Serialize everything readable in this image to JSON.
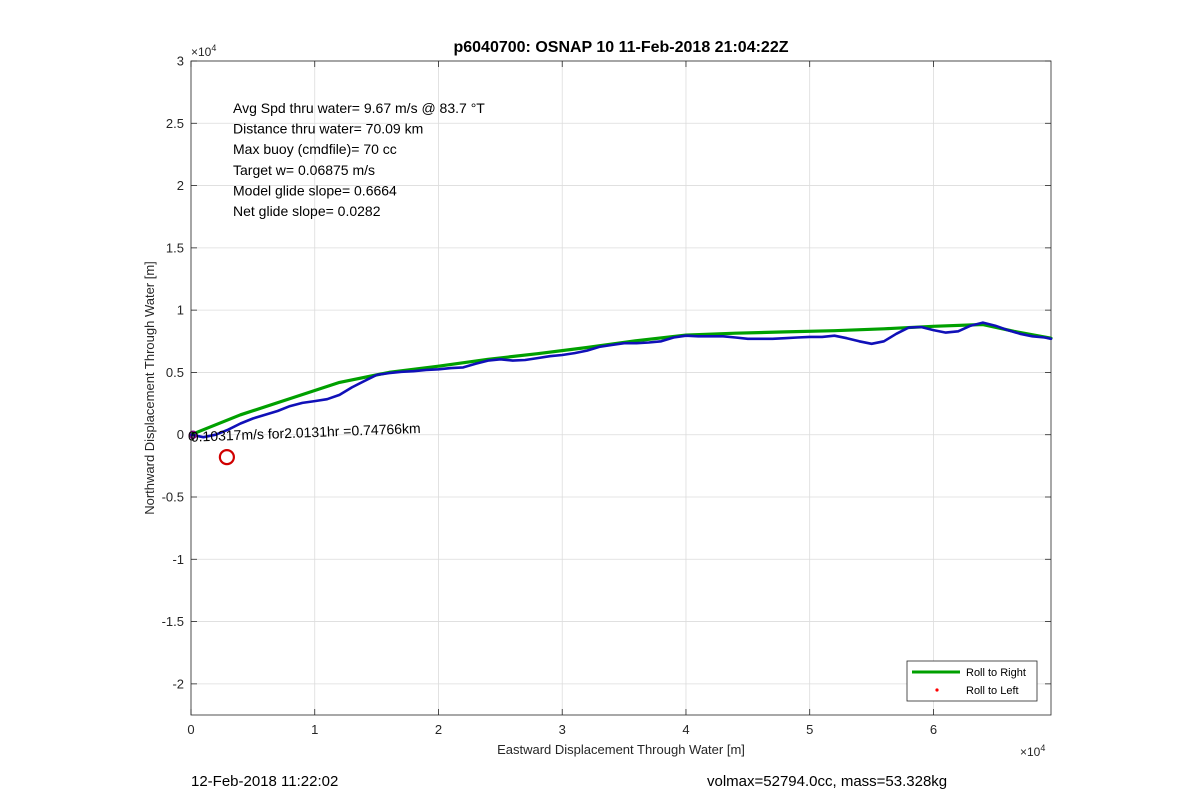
{
  "chart_data": {
    "type": "line",
    "title": "p6040700: OSNAP 10 11-Feb-2018 21:04:22Z",
    "xlabel": "Eastward Displacement Through Water [m]",
    "ylabel": "Northward Displacement Through Water [m]",
    "x_exponent_label": "×10",
    "x_exponent": "4",
    "y_exponent_label": "×10",
    "y_exponent": "4",
    "xlim": [
      0,
      69500
    ],
    "ylim": [
      -22500,
      30000
    ],
    "x_ticks": [
      0,
      10000,
      20000,
      30000,
      40000,
      50000,
      60000
    ],
    "x_tick_labels": [
      "0",
      "1",
      "2",
      "3",
      "4",
      "5",
      "6"
    ],
    "y_ticks": [
      -20000,
      -15000,
      -10000,
      -5000,
      0,
      5000,
      10000,
      15000,
      20000,
      25000,
      30000
    ],
    "y_tick_labels": [
      "-2",
      "-1.5",
      "-1",
      "-0.5",
      "0",
      "0.5",
      "1",
      "1.5",
      "2",
      "2.5",
      "3"
    ],
    "grid": true,
    "legend_position": "bottom-right",
    "series": [
      {
        "name": "Roll to Right",
        "color": "#00a000",
        "x": [
          0,
          4000,
          8000,
          12000,
          16000,
          20000,
          24000,
          28000,
          32000,
          36000,
          40000,
          44000,
          48000,
          52000,
          56000,
          60000,
          64000,
          66500,
          69500
        ],
        "y": [
          0,
          1600,
          2900,
          4200,
          5000,
          5500,
          6050,
          6500,
          7000,
          7550,
          8000,
          8150,
          8250,
          8350,
          8500,
          8700,
          8850,
          8300,
          7750
        ]
      },
      {
        "name": "Roll to Left",
        "color": "#ff0000",
        "marker": "point",
        "x": [],
        "y": []
      },
      {
        "name": "",
        "color": "#1010b8",
        "x": [
          0,
          1000,
          2000,
          3000,
          4000,
          5000,
          6000,
          7000,
          8000,
          9000,
          10000,
          11000,
          12000,
          13000,
          14000,
          15000,
          16000,
          17000,
          18000,
          19000,
          20000,
          21000,
          22000,
          23000,
          24000,
          25000,
          26000,
          27000,
          28000,
          29000,
          30000,
          31000,
          32000,
          33000,
          34000,
          35000,
          36000,
          37000,
          38000,
          39000,
          40000,
          41000,
          42000,
          43000,
          44000,
          45000,
          46000,
          47000,
          48000,
          49000,
          50000,
          51000,
          52000,
          53000,
          54000,
          55000,
          56000,
          57000,
          58000,
          59000,
          60000,
          61000,
          62000,
          63000,
          64000,
          65000,
          66000,
          67000,
          68000,
          69000,
          69500
        ],
        "y": [
          0,
          -200,
          0,
          400,
          900,
          1300,
          1600,
          1900,
          2300,
          2550,
          2700,
          2850,
          3200,
          3800,
          4300,
          4800,
          4950,
          5050,
          5100,
          5200,
          5250,
          5350,
          5400,
          5700,
          5950,
          6050,
          5950,
          6000,
          6150,
          6300,
          6400,
          6550,
          6750,
          7050,
          7200,
          7350,
          7350,
          7400,
          7500,
          7800,
          7950,
          7900,
          7900,
          7900,
          7800,
          7700,
          7700,
          7700,
          7750,
          7800,
          7850,
          7850,
          7950,
          7750,
          7500,
          7300,
          7500,
          8100,
          8600,
          8650,
          8400,
          8200,
          8300,
          8750,
          9000,
          8750,
          8400,
          8100,
          7900,
          7800,
          7700
        ]
      }
    ],
    "annotations": {
      "stats": [
        "Avg Spd thru water=  9.67 m/s @  83.7 °T",
        "Distance thru water= 70.09 km",
        "Max buoy (cmdfile)= 70 cc",
        "Target w= 0.06875 m/s",
        "Model glide slope= 0.6664",
        "Net glide slope= 0.0282"
      ],
      "current_label": "0.10317m/s for2.0131hr =0.74766km",
      "start_label": "0",
      "target_circle": {
        "x": 2900,
        "y": -1800
      }
    }
  },
  "footer": {
    "timestamp": "12-Feb-2018 11:22:02",
    "info": "volmax=52794.0cc, mass=53.328kg"
  }
}
